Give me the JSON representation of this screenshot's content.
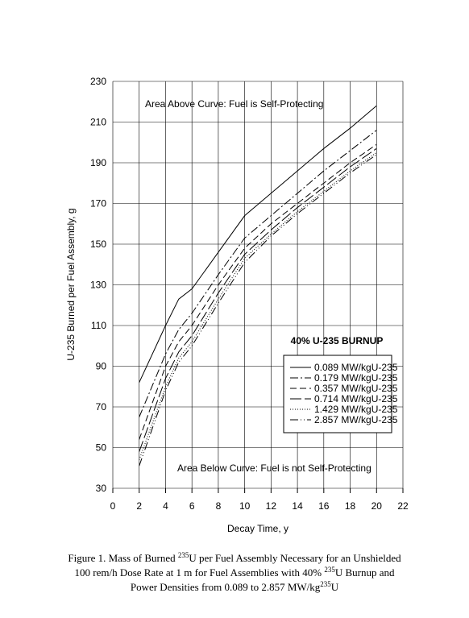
{
  "chart_data": {
    "type": "line",
    "xlabel": "Decay Time, y",
    "ylabel": "U-235 Burned per Fuel Assembly, g",
    "annotations": [
      "Area Above Curve: Fuel is Self-Protecting",
      "Area Below Curve: Fuel is not Self-Protecting"
    ],
    "legend_title": "40% U-235 BURNUP",
    "x": [
      2,
      4,
      5,
      6,
      8,
      10,
      12,
      14,
      16,
      18,
      20
    ],
    "series": [
      {
        "name": "0.089 MW/kgU-235",
        "color": "#000000",
        "dash": "none",
        "values": [
          82,
          110,
          123,
          128,
          146,
          164,
          175,
          186,
          197,
          207,
          218
        ]
      },
      {
        "name": "0.179 MW/kgU-235",
        "color": "#000000",
        "dash": "10 3 2 3",
        "values": [
          65,
          96,
          108,
          116,
          135,
          153,
          164,
          175,
          186,
          196,
          206
        ]
      },
      {
        "name": "0.357 MW/kgU-235",
        "color": "#000000",
        "dash": "8 4",
        "values": [
          54,
          90,
          102,
          110,
          130,
          148,
          160,
          170,
          180,
          190,
          199
        ]
      },
      {
        "name": "0.714 MW/kgU-235",
        "color": "#000000",
        "dash": "14 4",
        "values": [
          48,
          84,
          97,
          105,
          126,
          145,
          157,
          168,
          178,
          188,
          197
        ]
      },
      {
        "name": "1.429 MW/kgU-235",
        "color": "#000000",
        "dash": "1 2",
        "values": [
          44,
          80,
          94,
          102,
          123,
          143,
          155,
          166,
          176,
          186,
          195
        ]
      },
      {
        "name": "2.857 MW/kgU-235",
        "color": "#000000",
        "dash": "10 3 1 3 1 3",
        "values": [
          41,
          78,
          92,
          100,
          121,
          141,
          154,
          165,
          175,
          185,
          194
        ]
      }
    ],
    "xlim": [
      0,
      22
    ],
    "xticks": [
      0,
      2,
      4,
      6,
      8,
      10,
      12,
      14,
      16,
      18,
      20,
      22
    ],
    "ylim": [
      30,
      230
    ],
    "yticks": [
      30,
      50,
      70,
      90,
      110,
      130,
      150,
      170,
      190,
      210,
      230
    ],
    "grid": true
  },
  "caption": {
    "lines": [
      [
        {
          "text": "Figure 1.  Mass of Burned "
        },
        {
          "sup": "235"
        },
        {
          "text": "U per Fuel Assembly Necessary for an Unshielded"
        }
      ],
      [
        {
          "text": "100 rem/h Dose Rate at 1 m for Fuel Assemblies with 40%  "
        },
        {
          "sup": "235"
        },
        {
          "text": "U Burnup and"
        }
      ],
      [
        {
          "text": "Power Densities from 0.089 to 2.857 MW/kg"
        },
        {
          "sup": "235"
        },
        {
          "text": "U"
        }
      ]
    ]
  }
}
